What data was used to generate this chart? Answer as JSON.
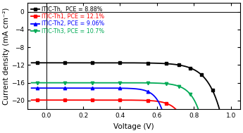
{
  "title": "",
  "xlabel": "Voltage (V)",
  "ylabel": "Current density (mA cm⁻²)",
  "xlim": [
    -0.1,
    1.05
  ],
  "ylim": [
    -22,
    2
  ],
  "xticks": [
    0.0,
    0.2,
    0.4,
    0.6,
    0.8,
    1.0
  ],
  "yticks": [
    0,
    -4,
    -8,
    -12,
    -16,
    -20
  ],
  "curves": [
    {
      "label": "ITIC-Th,  PCE = 8.88%",
      "color": "black",
      "jsc": -11.5,
      "voc": 0.945,
      "n_vt": 0.072,
      "marker": "s"
    },
    {
      "label": "ITIC-Th1, PCE = 12.1%",
      "color": "red",
      "jsc": -19.9,
      "voc": 0.815,
      "n_vt": 0.05,
      "marker": "s"
    },
    {
      "label": "ITIC-Th2, PCE = 9.06%",
      "color": "blue",
      "jsc": -17.2,
      "voc": 0.68,
      "n_vt": 0.042,
      "marker": "^"
    },
    {
      "label": "ITIC-Th3, PCE = 10.7%",
      "color": "#00aa55",
      "jsc": -16.0,
      "voc": 0.875,
      "n_vt": 0.052,
      "marker": "v"
    }
  ],
  "marker_voltages": [
    -0.05,
    0.1,
    0.25,
    0.4,
    0.55,
    0.65,
    0.72,
    0.78,
    0.84,
    0.9,
    0.96,
    1.01
  ],
  "background_color": "white",
  "legend_fontsize": 5.8,
  "axis_fontsize": 7.5,
  "tick_fontsize": 6.5,
  "linewidth": 1.3,
  "markersize": 3.2
}
